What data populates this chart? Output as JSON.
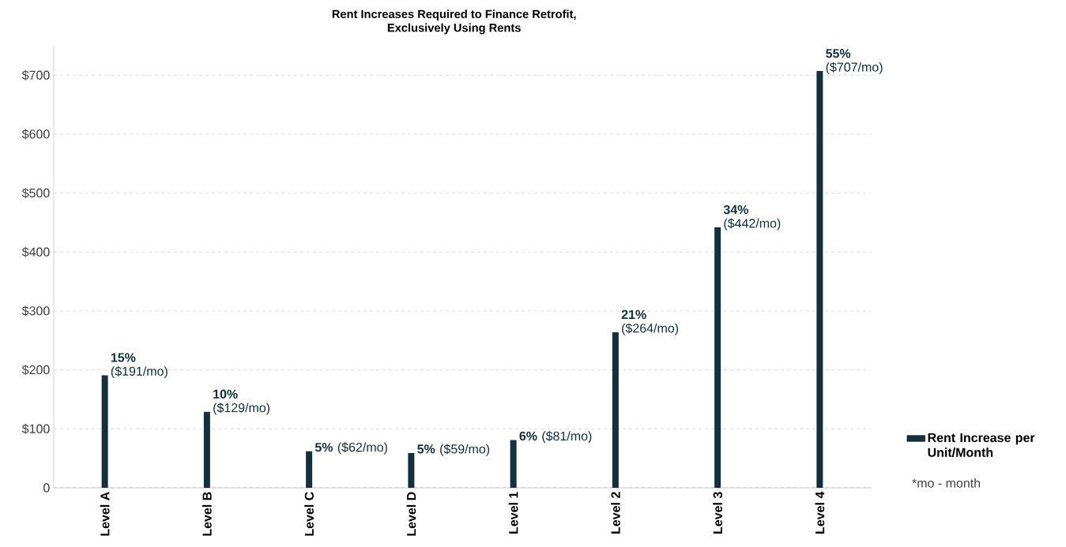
{
  "chart_data": {
    "type": "bar",
    "title": "Rent Increases Required to Finance Retrofit, Exclusively Using Rents",
    "categories": [
      "Level A",
      "Level B",
      "Level C",
      "Level D",
      "Level 1",
      "Level 2",
      "Level 3",
      "Level 4"
    ],
    "series": [
      {
        "name": "Rent Increase per Unit/Month",
        "color": "#13303f",
        "values": [
          191,
          129,
          62,
          59,
          81,
          264,
          442,
          707
        ]
      }
    ],
    "value_labels": [
      "**15%** ($191/mo)",
      "**10%** ($129/mo)",
      "**5%** ($62/mo)",
      "**5%** ($59/mo)",
      "**6%** ($81/mo)",
      "**21%** ($264/mo)",
      "**34%** ($442/mo)",
      "**55%** ($707/mo)"
    ],
    "ylim": [
      0,
      750
    ],
    "yticks": [
      0,
      {
        "value": 100,
        "label": "$100"
      },
      {
        "value": 200,
        "label": "$200"
      },
      {
        "value": 300,
        "label": "$300"
      },
      {
        "value": 400,
        "label": "$400"
      },
      {
        "value": 500,
        "label": "$500"
      },
      {
        "value": 600,
        "label": "$600"
      },
      {
        "value": 700,
        "label": "$700"
      }
    ],
    "grid": "y",
    "legend": "right",
    "annotations": [
      "*mo - month"
    ]
  }
}
